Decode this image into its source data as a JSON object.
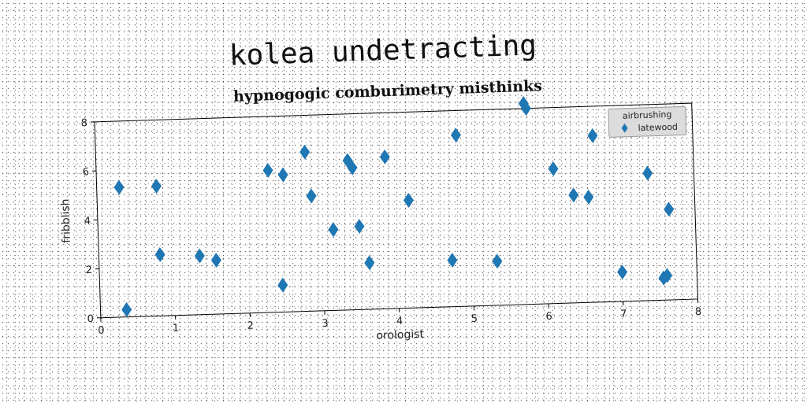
{
  "chart_data": {
    "type": "scatter",
    "title": "kolea undetracting",
    "subtitle": "hypnogogic comburimetry misthinks",
    "xlabel": "orologist",
    "ylabel": "fribblish",
    "xlim": [
      0,
      8
    ],
    "ylim": [
      0,
      8
    ],
    "xticks": [
      "0",
      "1",
      "2",
      "3",
      "4",
      "5",
      "6",
      "7",
      "8"
    ],
    "yticks": [
      "0",
      "2",
      "4",
      "6",
      "8"
    ],
    "grid": false,
    "legend": {
      "title": "airbrushing",
      "position": "top-right"
    },
    "series": [
      {
        "name": "latewood",
        "color": "#1f77b4",
        "marker": "diamond",
        "points": [
          [
            0.3,
            5.3
          ],
          [
            0.35,
            0.3
          ],
          [
            0.8,
            5.3
          ],
          [
            0.82,
            2.5
          ],
          [
            1.35,
            2.4
          ],
          [
            1.57,
            2.2
          ],
          [
            2.3,
            5.8
          ],
          [
            2.45,
            1.1
          ],
          [
            2.5,
            5.6
          ],
          [
            2.8,
            6.5
          ],
          [
            2.87,
            4.7
          ],
          [
            3.15,
            3.3
          ],
          [
            3.37,
            6.1
          ],
          [
            3.43,
            5.8
          ],
          [
            3.5,
            3.4
          ],
          [
            3.62,
            1.9
          ],
          [
            3.87,
            6.2
          ],
          [
            4.17,
            4.4
          ],
          [
            4.73,
            1.9
          ],
          [
            4.83,
            7.0
          ],
          [
            5.33,
            1.8
          ],
          [
            5.75,
            8.2
          ],
          [
            5.78,
            8.0
          ],
          [
            6.12,
            5.5
          ],
          [
            6.38,
            4.4
          ],
          [
            6.58,
            4.3
          ],
          [
            6.66,
            6.8
          ],
          [
            7.0,
            1.2
          ],
          [
            7.38,
            5.2
          ],
          [
            7.55,
            0.9
          ],
          [
            7.6,
            1.0
          ],
          [
            7.65,
            3.7
          ]
        ]
      }
    ]
  }
}
